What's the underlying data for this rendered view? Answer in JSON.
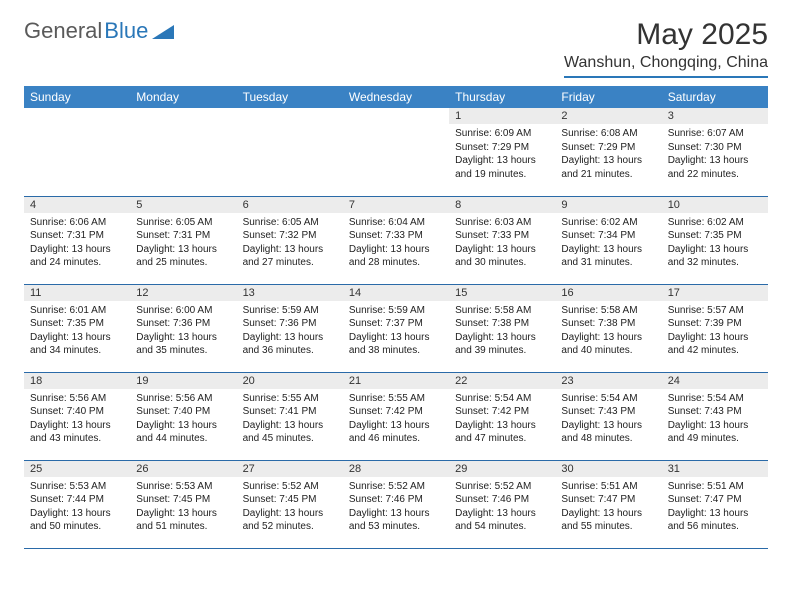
{
  "brand": {
    "part1": "General",
    "part2": "Blue"
  },
  "title": "May 2025",
  "location": "Wanshun, Chongqing, China",
  "colors": {
    "header_bg": "#3a82c4",
    "header_text": "#ffffff",
    "daynum_bg": "#ececec",
    "row_border": "#2a6aa8",
    "logo_gray": "#5a5a5a",
    "logo_blue": "#2a77b8"
  },
  "weekdays": [
    "Sunday",
    "Monday",
    "Tuesday",
    "Wednesday",
    "Thursday",
    "Friday",
    "Saturday"
  ],
  "first_weekday_index": 4,
  "days": [
    {
      "n": 1,
      "sunrise": "6:09 AM",
      "sunset": "7:29 PM",
      "daylight": "13 hours and 19 minutes."
    },
    {
      "n": 2,
      "sunrise": "6:08 AM",
      "sunset": "7:29 PM",
      "daylight": "13 hours and 21 minutes."
    },
    {
      "n": 3,
      "sunrise": "6:07 AM",
      "sunset": "7:30 PM",
      "daylight": "13 hours and 22 minutes."
    },
    {
      "n": 4,
      "sunrise": "6:06 AM",
      "sunset": "7:31 PM",
      "daylight": "13 hours and 24 minutes."
    },
    {
      "n": 5,
      "sunrise": "6:05 AM",
      "sunset": "7:31 PM",
      "daylight": "13 hours and 25 minutes."
    },
    {
      "n": 6,
      "sunrise": "6:05 AM",
      "sunset": "7:32 PM",
      "daylight": "13 hours and 27 minutes."
    },
    {
      "n": 7,
      "sunrise": "6:04 AM",
      "sunset": "7:33 PM",
      "daylight": "13 hours and 28 minutes."
    },
    {
      "n": 8,
      "sunrise": "6:03 AM",
      "sunset": "7:33 PM",
      "daylight": "13 hours and 30 minutes."
    },
    {
      "n": 9,
      "sunrise": "6:02 AM",
      "sunset": "7:34 PM",
      "daylight": "13 hours and 31 minutes."
    },
    {
      "n": 10,
      "sunrise": "6:02 AM",
      "sunset": "7:35 PM",
      "daylight": "13 hours and 32 minutes."
    },
    {
      "n": 11,
      "sunrise": "6:01 AM",
      "sunset": "7:35 PM",
      "daylight": "13 hours and 34 minutes."
    },
    {
      "n": 12,
      "sunrise": "6:00 AM",
      "sunset": "7:36 PM",
      "daylight": "13 hours and 35 minutes."
    },
    {
      "n": 13,
      "sunrise": "5:59 AM",
      "sunset": "7:36 PM",
      "daylight": "13 hours and 36 minutes."
    },
    {
      "n": 14,
      "sunrise": "5:59 AM",
      "sunset": "7:37 PM",
      "daylight": "13 hours and 38 minutes."
    },
    {
      "n": 15,
      "sunrise": "5:58 AM",
      "sunset": "7:38 PM",
      "daylight": "13 hours and 39 minutes."
    },
    {
      "n": 16,
      "sunrise": "5:58 AM",
      "sunset": "7:38 PM",
      "daylight": "13 hours and 40 minutes."
    },
    {
      "n": 17,
      "sunrise": "5:57 AM",
      "sunset": "7:39 PM",
      "daylight": "13 hours and 42 minutes."
    },
    {
      "n": 18,
      "sunrise": "5:56 AM",
      "sunset": "7:40 PM",
      "daylight": "13 hours and 43 minutes."
    },
    {
      "n": 19,
      "sunrise": "5:56 AM",
      "sunset": "7:40 PM",
      "daylight": "13 hours and 44 minutes."
    },
    {
      "n": 20,
      "sunrise": "5:55 AM",
      "sunset": "7:41 PM",
      "daylight": "13 hours and 45 minutes."
    },
    {
      "n": 21,
      "sunrise": "5:55 AM",
      "sunset": "7:42 PM",
      "daylight": "13 hours and 46 minutes."
    },
    {
      "n": 22,
      "sunrise": "5:54 AM",
      "sunset": "7:42 PM",
      "daylight": "13 hours and 47 minutes."
    },
    {
      "n": 23,
      "sunrise": "5:54 AM",
      "sunset": "7:43 PM",
      "daylight": "13 hours and 48 minutes."
    },
    {
      "n": 24,
      "sunrise": "5:54 AM",
      "sunset": "7:43 PM",
      "daylight": "13 hours and 49 minutes."
    },
    {
      "n": 25,
      "sunrise": "5:53 AM",
      "sunset": "7:44 PM",
      "daylight": "13 hours and 50 minutes."
    },
    {
      "n": 26,
      "sunrise": "5:53 AM",
      "sunset": "7:45 PM",
      "daylight": "13 hours and 51 minutes."
    },
    {
      "n": 27,
      "sunrise": "5:52 AM",
      "sunset": "7:45 PM",
      "daylight": "13 hours and 52 minutes."
    },
    {
      "n": 28,
      "sunrise": "5:52 AM",
      "sunset": "7:46 PM",
      "daylight": "13 hours and 53 minutes."
    },
    {
      "n": 29,
      "sunrise": "5:52 AM",
      "sunset": "7:46 PM",
      "daylight": "13 hours and 54 minutes."
    },
    {
      "n": 30,
      "sunrise": "5:51 AM",
      "sunset": "7:47 PM",
      "daylight": "13 hours and 55 minutes."
    },
    {
      "n": 31,
      "sunrise": "5:51 AM",
      "sunset": "7:47 PM",
      "daylight": "13 hours and 56 minutes."
    }
  ],
  "labels": {
    "sunrise": "Sunrise:",
    "sunset": "Sunset:",
    "daylight": "Daylight:"
  }
}
